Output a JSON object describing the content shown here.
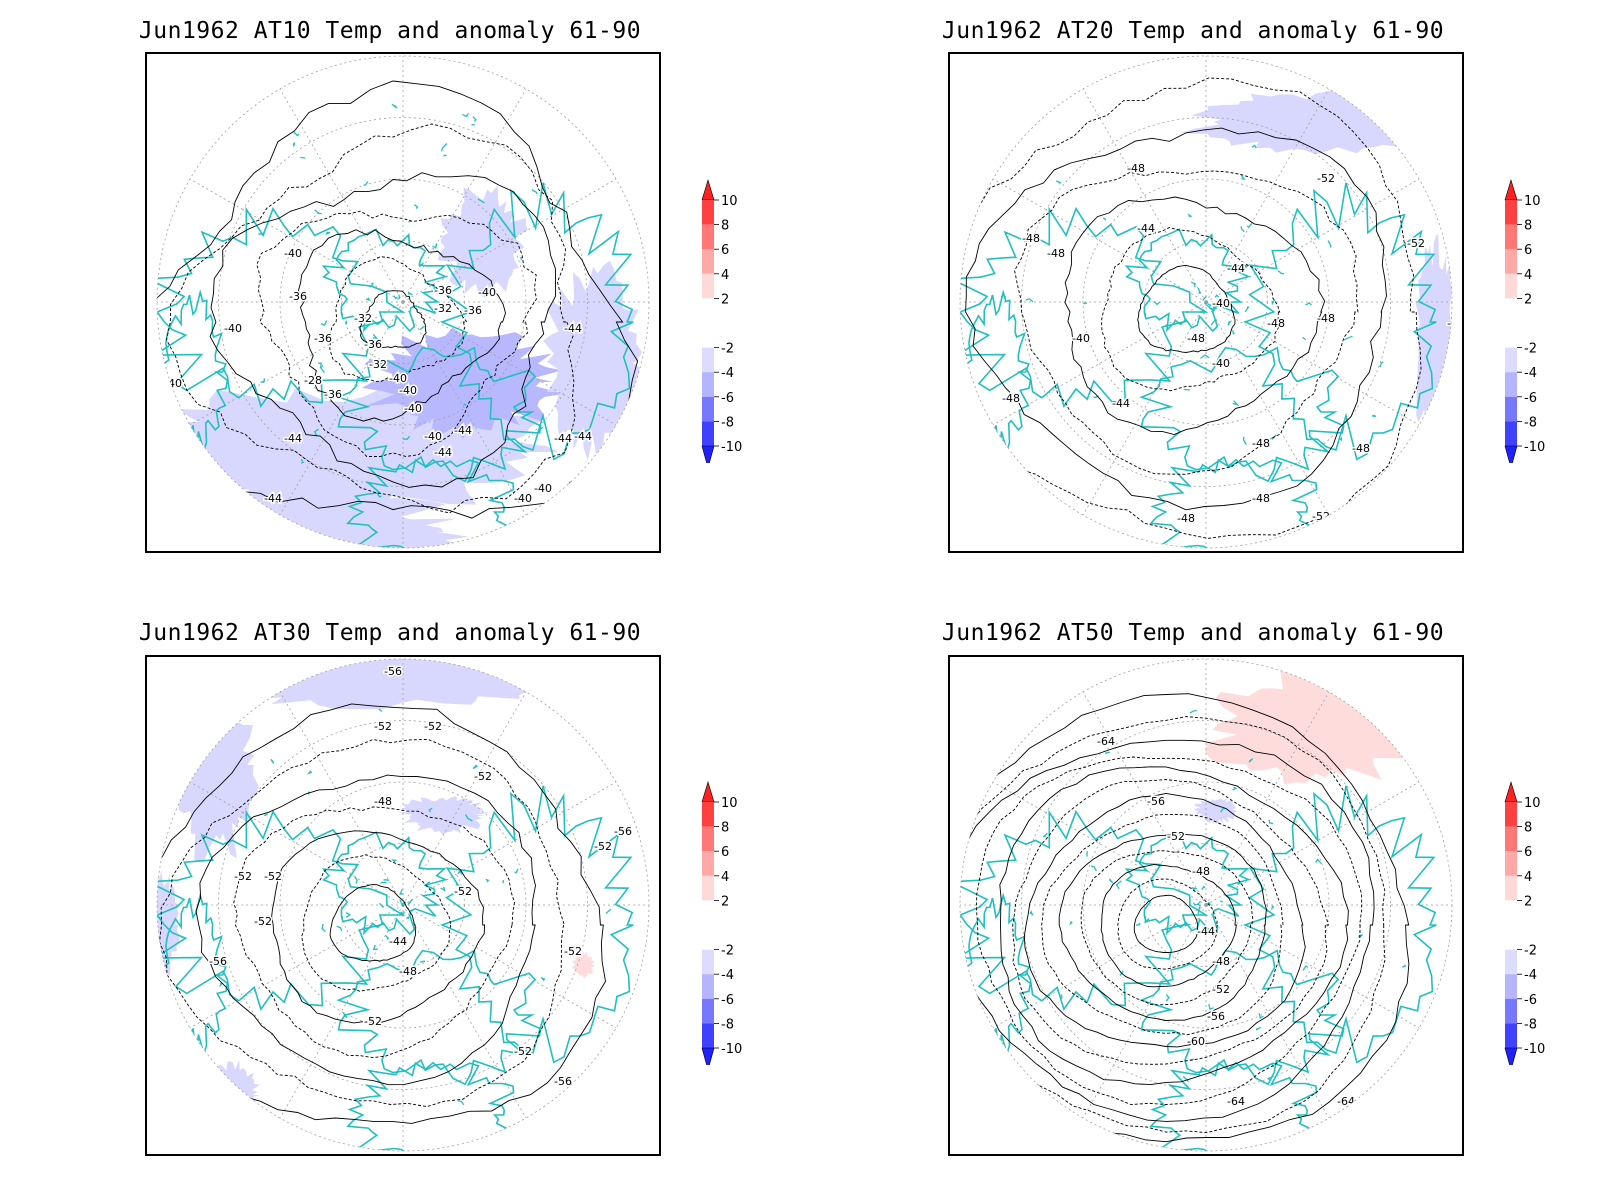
{
  "panels": [
    {
      "title": "Jun1962 AT10 Temp and anomaly 61-90",
      "contour_labels": [
        "-40",
        "-36",
        "-32",
        "-36",
        "-36",
        "-32",
        "-36",
        "-40",
        "-40",
        "-40",
        "-44",
        "-28",
        "-40",
        "-36",
        "-36",
        "-32",
        "-40",
        "-40",
        "-44",
        "-40",
        "-44",
        "-44",
        "-44",
        "-44",
        "-40",
        "-44",
        "-44",
        "-44",
        "-40",
        "-40"
      ]
    },
    {
      "title": "Jun1962 AT20 Temp and anomaly 61-90",
      "contour_labels": [
        "-48",
        "-48",
        "-52",
        "-52",
        "-52",
        "-48",
        "-44",
        "-44",
        "-40",
        "-40",
        "-40",
        "-44",
        "-48",
        "-48",
        "-48",
        "-48",
        "-48",
        "-48",
        "-48",
        "-52",
        "-52",
        "-48"
      ]
    },
    {
      "title": "Jun1962 AT30 Temp and anomaly 61-90",
      "contour_labels": [
        "-56",
        "-52",
        "-52",
        "-52",
        "-48",
        "-52",
        "-56",
        "-52",
        "-52",
        "-44",
        "-48",
        "-52",
        "-56",
        "-56",
        "-52",
        "-52",
        "-52",
        "-52",
        "-56",
        "-52",
        "-56",
        "-52"
      ]
    },
    {
      "title": "Jun1962 AT50 Temp and anomaly 61-90",
      "contour_labels": [
        "-64",
        "-56",
        "-52",
        "-48",
        "-44",
        "-48",
        "-52",
        "-56",
        "-60",
        "-64",
        "-64",
        "-64",
        "-64"
      ]
    }
  ],
  "colorbar": {
    "tick_labels": [
      "10",
      "8",
      "6",
      "4",
      "2",
      "-2",
      "-4",
      "-6",
      "-8",
      "-10"
    ],
    "colors": {
      "max_arrow": "#ff2020",
      "8_10": "#ff4040",
      "6_8": "#ff7878",
      "4_6": "#ffa8a8",
      "2_4": "#ffd8d8",
      "-2_2": "#ffffff",
      "-4_-2": "#dcdcff",
      "-6_-4": "#b4b4ff",
      "-8_-6": "#7878ff",
      "-10_-8": "#4040ff",
      "min_arrow": "#2020ff"
    }
  },
  "colors": {
    "coastline": "#20c0c0",
    "contour": "#000000",
    "grid": "#a0a0a0",
    "negative_anomaly_fill": "#d8d8ff",
    "positive_anomaly_fill": "#ffdcdc"
  }
}
